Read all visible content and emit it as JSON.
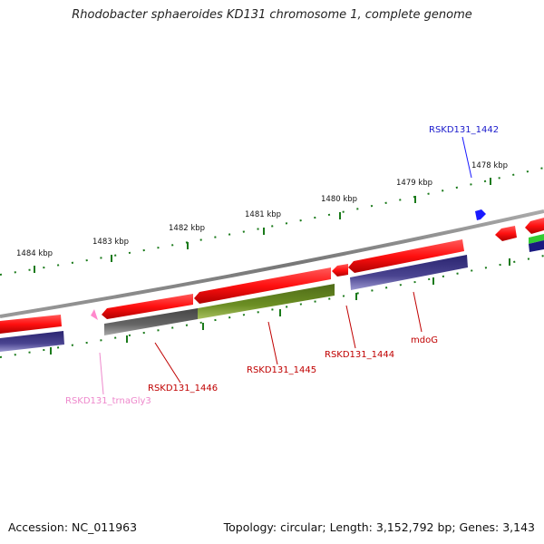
{
  "title": "Rhodobacter sphaeroides KD131 chromosome 1, complete genome",
  "footer": {
    "accession": "Accession: NC_011963",
    "summary": "Topology: circular; Length: 3,152,792 bp; Genes: 3,143"
  },
  "scale_labels": [
    "1478 kbp",
    "1479 kbp",
    "1480 kbp",
    "1481 kbp",
    "1482 kbp",
    "1483 kbp",
    "1484 kbp"
  ],
  "gene_labels": {
    "rskd1442": "RSKD131_1442",
    "rskd1444": "RSKD131_1444",
    "rskd1445": "RSKD131_1445",
    "rskd1446": "RSKD131_1446",
    "mdog": "mdoG",
    "trnagly3": "RSKD131_trnaGly3"
  },
  "colors": {
    "cds": "#ff1a1a",
    "gene_label": "#c00000",
    "rna": "#ff66cc",
    "rna_label": "#ee88cc",
    "selected": "#1a1aff",
    "backbone": "#888888",
    "cog_purple": "#4a4490",
    "cog_olive": "#6b8e23",
    "cog_gray": "#666666",
    "scale_ticks": "#1a7a1a"
  }
}
